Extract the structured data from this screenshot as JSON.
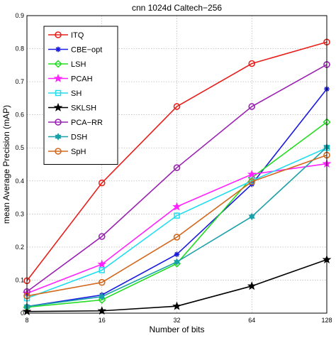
{
  "chart_data": {
    "type": "line",
    "title": "cnn 1024d Caltech−256",
    "xlabel": "Number of bits",
    "ylabel": "mean Average Precision (mAP)",
    "x": [
      8,
      16,
      32,
      64,
      128
    ],
    "x_tick_labels": [
      "8",
      "16",
      "32",
      "64",
      "128"
    ],
    "x_scale": "log2",
    "ylim": [
      0,
      0.9
    ],
    "y_ticks": [
      0,
      0.1,
      0.2,
      0.3,
      0.4,
      0.5,
      0.6,
      0.7,
      0.8,
      0.9
    ],
    "y_tick_labels": [
      "0",
      "0.1",
      "0.2",
      "0.3",
      "0.4",
      "0.5",
      "0.6",
      "0.7",
      "0.8",
      "0.9"
    ],
    "grid": true,
    "legend_position": "top-left",
    "series": [
      {
        "name": "ITQ",
        "color": "#e8201c",
        "marker": "circle",
        "values": [
          0.098,
          0.394,
          0.625,
          0.755,
          0.82
        ]
      },
      {
        "name": "CBE−opt",
        "color": "#1a1ae0",
        "marker": "asterisk",
        "values": [
          0.02,
          0.055,
          0.178,
          0.39,
          0.678
        ]
      },
      {
        "name": "LSH",
        "color": "#22dd22",
        "marker": "diamond",
        "values": [
          0.018,
          0.04,
          0.15,
          0.41,
          0.578
        ]
      },
      {
        "name": "PCAH",
        "color": "#ff22ff",
        "marker": "star",
        "values": [
          0.06,
          0.148,
          0.322,
          0.42,
          0.452
        ]
      },
      {
        "name": "SH",
        "color": "#22ddee",
        "marker": "square",
        "values": [
          0.045,
          0.13,
          0.295,
          0.4,
          0.5
        ]
      },
      {
        "name": "SKLSH",
        "color": "#000000",
        "marker": "star",
        "values": [
          0.005,
          0.007,
          0.021,
          0.082,
          0.162
        ]
      },
      {
        "name": "PCA−RR",
        "color": "#9a22b2",
        "marker": "circle",
        "values": [
          0.065,
          0.232,
          0.44,
          0.625,
          0.752
        ]
      },
      {
        "name": "DSH",
        "color": "#1aa0a8",
        "marker": "hexagram",
        "values": [
          0.02,
          0.05,
          0.155,
          0.292,
          0.502
        ]
      },
      {
        "name": "SpH",
        "color": "#d2691e",
        "marker": "circle",
        "values": [
          0.052,
          0.093,
          0.23,
          0.398,
          0.478
        ]
      }
    ]
  }
}
